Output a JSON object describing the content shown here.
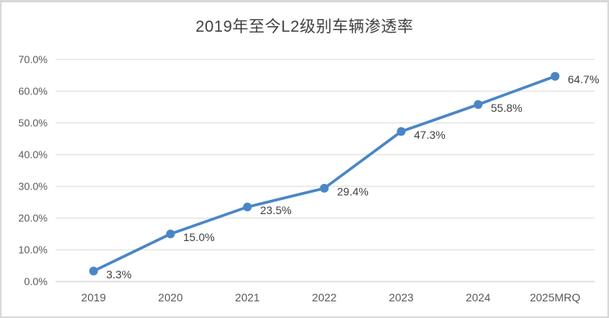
{
  "chart_data": {
    "type": "line",
    "title": "2019年至今L2级别车辆渗透率",
    "categories": [
      "2019",
      "2020",
      "2021",
      "2022",
      "2023",
      "2024",
      "2025MRQ"
    ],
    "series": [
      {
        "name": "L2级别车辆渗透率",
        "values": [
          3.3,
          15.0,
          23.5,
          29.4,
          47.3,
          55.8,
          64.7
        ],
        "data_labels": [
          "3.3%",
          "15.0%",
          "23.5%",
          "29.4%",
          "47.3%",
          "55.8%",
          "64.7%"
        ]
      }
    ],
    "xlabel": "",
    "ylabel": "",
    "ylim": [
      0,
      70
    ],
    "y_tick_step": 10,
    "y_tick_labels": [
      "0.0%",
      "10.0%",
      "20.0%",
      "30.0%",
      "40.0%",
      "50.0%",
      "60.0%",
      "70.0%"
    ],
    "grid": "horizontal",
    "legend_position": "none",
    "colors": {
      "line": "#4a86c6",
      "marker": "#4a86c6",
      "gridline": "#d9d9d9",
      "axis": "#c6c6c6",
      "tick_text": "#595959",
      "label_text": "#404040",
      "title_text": "#404040",
      "frame_border": "#d8d8d8"
    },
    "marker": "circle"
  }
}
